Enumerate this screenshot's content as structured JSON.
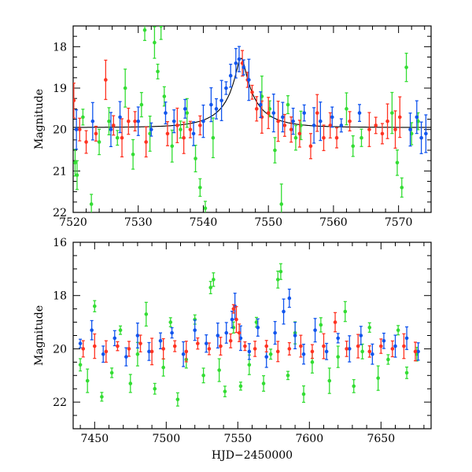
{
  "chart_data": [
    {
      "id": "top",
      "type": "scatter",
      "ylabel": "Magnitude",
      "xlabel": "",
      "xlim": [
        7520,
        7575
      ],
      "ylim": [
        22,
        17.5
      ],
      "xticks": [
        7520,
        7530,
        7540,
        7550,
        7560,
        7570
      ],
      "yticks": [
        18,
        19,
        20,
        21,
        22
      ],
      "model": {
        "baseline": 19.95,
        "t0": 7545.8,
        "peak": 18.28,
        "u0": 0.12,
        "tE": 6.0
      },
      "series": [
        {
          "name": "green",
          "color": "#33dd33",
          "points": [
            [
              7520.3,
              20.8
            ],
            [
              7520.6,
              21.1
            ],
            [
              7521.5,
              19.7
            ],
            [
              7522.8,
              21.8
            ],
            [
              7524.0,
              20.3
            ],
            [
              7525.5,
              19.8
            ],
            [
              7526.8,
              20.2
            ],
            [
              7528.0,
              19.0
            ],
            [
              7529.2,
              20.6
            ],
            [
              7530.5,
              19.4
            ],
            [
              7531.0,
              17.6
            ],
            [
              7531.8,
              20.1
            ],
            [
              7532.5,
              17.9
            ],
            [
              7533.0,
              18.6
            ],
            [
              7533.5,
              17.5
            ],
            [
              7534.0,
              19.2
            ],
            [
              7535.2,
              20.4
            ],
            [
              7536.5,
              20.0
            ],
            [
              7537.5,
              19.6
            ],
            [
              7538.8,
              20.7
            ],
            [
              7539.5,
              21.4
            ],
            [
              7540.3,
              21.9
            ],
            [
              7541.5,
              20.2
            ],
            [
              7549.0,
              19.2
            ],
            [
              7550.2,
              19.5
            ],
            [
              7551.0,
              20.5
            ],
            [
              7552.0,
              21.8
            ],
            [
              7553.0,
              19.4
            ],
            [
              7554.2,
              20.2
            ],
            [
              7555.0,
              19.9
            ],
            [
              7562.0,
              19.5
            ],
            [
              7563.0,
              20.4
            ],
            [
              7564.3,
              20.2
            ],
            [
              7569.0,
              19.6
            ],
            [
              7569.8,
              20.8
            ],
            [
              7570.5,
              21.4
            ],
            [
              7571.2,
              18.5
            ],
            [
              7572.0,
              20.1
            ],
            [
              7573.0,
              19.8
            ]
          ]
        },
        {
          "name": "red",
          "color": "#ff3322",
          "points": [
            [
              7520.1,
              19.3
            ],
            [
              7521.0,
              20.0
            ],
            [
              7522.0,
              20.3
            ],
            [
              7523.5,
              20.1
            ],
            [
              7525.0,
              18.8
            ],
            [
              7526.2,
              19.9
            ],
            [
              7527.5,
              20.2
            ],
            [
              7528.5,
              19.8
            ],
            [
              7529.5,
              19.8
            ],
            [
              7531.2,
              20.3
            ],
            [
              7534.5,
              20.1
            ],
            [
              7536.0,
              19.9
            ],
            [
              7537.0,
              20.2
            ],
            [
              7538.0,
              20.0
            ],
            [
              7539.5,
              19.9
            ],
            [
              7546.0,
              18.4
            ],
            [
              7546.8,
              18.8
            ],
            [
              7547.5,
              19.1
            ],
            [
              7548.2,
              19.5
            ],
            [
              7549.0,
              19.7
            ],
            [
              7550.0,
              19.6
            ],
            [
              7551.5,
              19.8
            ],
            [
              7552.5,
              19.9
            ],
            [
              7553.5,
              20.0
            ],
            [
              7554.8,
              20.1
            ],
            [
              7556.5,
              20.4
            ],
            [
              7557.5,
              19.6
            ],
            [
              7558.5,
              20.2
            ],
            [
              7559.5,
              19.9
            ],
            [
              7560.5,
              20.2
            ],
            [
              7562.5,
              19.8
            ],
            [
              7565.5,
              20.0
            ],
            [
              7566.5,
              19.9
            ],
            [
              7567.5,
              20.1
            ],
            [
              7568.3,
              19.8
            ],
            [
              7569.5,
              20.0
            ],
            [
              7570.2,
              19.7
            ]
          ]
        },
        {
          "name": "blue",
          "color": "#1155ee",
          "points": [
            [
              7520.5,
              20.0
            ],
            [
              7523.0,
              19.8
            ],
            [
              7525.8,
              20.0
            ],
            [
              7527.2,
              19.7
            ],
            [
              7530.0,
              19.8
            ],
            [
              7532.0,
              20.0
            ],
            [
              7534.2,
              19.6
            ],
            [
              7535.5,
              19.8
            ],
            [
              7537.2,
              19.5
            ],
            [
              7538.5,
              20.1
            ],
            [
              7540.0,
              19.8
            ],
            [
              7541.2,
              19.4
            ],
            [
              7542.0,
              19.5
            ],
            [
              7542.8,
              19.3
            ],
            [
              7543.5,
              19.0
            ],
            [
              7544.2,
              18.7
            ],
            [
              7545.0,
              18.4
            ],
            [
              7545.5,
              18.3
            ],
            [
              7546.2,
              18.5
            ],
            [
              7547.0,
              18.8
            ],
            [
              7548.8,
              19.4
            ],
            [
              7550.8,
              19.6
            ],
            [
              7552.2,
              19.7
            ],
            [
              7553.8,
              19.8
            ],
            [
              7555.5,
              19.6
            ],
            [
              7557.0,
              19.9
            ],
            [
              7558.0,
              19.8
            ],
            [
              7559.8,
              19.7
            ],
            [
              7561.2,
              19.9
            ],
            [
              7564.0,
              19.6
            ],
            [
              7571.8,
              20.0
            ],
            [
              7572.8,
              19.7
            ],
            [
              7573.5,
              20.2
            ],
            [
              7574.2,
              20.1
            ]
          ]
        }
      ]
    },
    {
      "id": "bottom",
      "type": "scatter",
      "ylabel": "Magnitude",
      "xlabel": "HJD−2450000",
      "xlim": [
        7435,
        7685
      ],
      "ylim": [
        23,
        16
      ],
      "xticks": [
        7450,
        7500,
        7550,
        7600,
        7650
      ],
      "yticks": [
        16,
        18,
        20,
        22
      ],
      "series": [
        {
          "name": "green",
          "color": "#33dd33",
          "points": [
            [
              7440,
              20.6
            ],
            [
              7445,
              21.2
            ],
            [
              7450,
              18.4
            ],
            [
              7455,
              21.8
            ],
            [
              7462,
              20.9
            ],
            [
              7468,
              19.3
            ],
            [
              7475,
              21.3
            ],
            [
              7480,
              20.2
            ],
            [
              7486,
              18.7
            ],
            [
              7492,
              21.5
            ],
            [
              7498,
              20.7
            ],
            [
              7503,
              19.0
            ],
            [
              7508,
              21.9
            ],
            [
              7514,
              20.4
            ],
            [
              7520,
              18.9
            ],
            [
              7526,
              21.0
            ],
            [
              7531,
              17.7
            ],
            [
              7533,
              17.4
            ],
            [
              7537,
              20.8
            ],
            [
              7541,
              21.6
            ],
            [
              7547,
              19.2
            ],
            [
              7552,
              21.4
            ],
            [
              7558,
              20.6
            ],
            [
              7563,
              19.0
            ],
            [
              7568,
              21.3
            ],
            [
              7573,
              20.2
            ],
            [
              7578,
              17.4
            ],
            [
              7580,
              17.1
            ],
            [
              7585,
              21.0
            ],
            [
              7590,
              19.4
            ],
            [
              7596,
              21.7
            ],
            [
              7602,
              20.5
            ],
            [
              7608,
              19.1
            ],
            [
              7614,
              21.2
            ],
            [
              7620,
              20.3
            ],
            [
              7625,
              18.6
            ],
            [
              7631,
              21.4
            ],
            [
              7637,
              20.1
            ],
            [
              7642,
              19.2
            ],
            [
              7648,
              21.1
            ],
            [
              7655,
              20.4
            ],
            [
              7662,
              19.3
            ],
            [
              7668,
              20.9
            ],
            [
              7675,
              20.2
            ]
          ]
        },
        {
          "name": "blue",
          "color": "#1155ee",
          "points": [
            [
              7440,
              19.8
            ],
            [
              7448,
              19.3
            ],
            [
              7456,
              20.2
            ],
            [
              7464,
              19.6
            ],
            [
              7472,
              20.3
            ],
            [
              7480,
              19.5
            ],
            [
              7488,
              20.1
            ],
            [
              7496,
              19.7
            ],
            [
              7504,
              19.4
            ],
            [
              7512,
              20.2
            ],
            [
              7520,
              19.3
            ],
            [
              7528,
              19.8
            ],
            [
              7536,
              19.5
            ],
            [
              7542,
              19.4
            ],
            [
              7546,
              18.9
            ],
            [
              7548,
              18.4
            ],
            [
              7552,
              19.6
            ],
            [
              7558,
              20.1
            ],
            [
              7564,
              19.2
            ],
            [
              7570,
              20.3
            ],
            [
              7576,
              19.4
            ],
            [
              7582,
              18.6
            ],
            [
              7586,
              18.1
            ],
            [
              7590,
              19.5
            ],
            [
              7596,
              20.2
            ],
            [
              7604,
              19.3
            ],
            [
              7612,
              20.1
            ],
            [
              7620,
              19.6
            ],
            [
              7628,
              20.0
            ],
            [
              7636,
              19.5
            ],
            [
              7644,
              20.2
            ],
            [
              7652,
              19.7
            ],
            [
              7660,
              19.9
            ],
            [
              7668,
              19.6
            ],
            [
              7676,
              20.1
            ]
          ]
        },
        {
          "name": "red",
          "color": "#ff3322",
          "points": [
            [
              7442,
              20.0
            ],
            [
              7450,
              19.9
            ],
            [
              7458,
              20.1
            ],
            [
              7466,
              19.9
            ],
            [
              7474,
              20.0
            ],
            [
              7482,
              19.8
            ],
            [
              7490,
              20.1
            ],
            [
              7498,
              20.0
            ],
            [
              7506,
              19.9
            ],
            [
              7514,
              20.1
            ],
            [
              7522,
              19.8
            ],
            [
              7530,
              20.0
            ],
            [
              7538,
              19.9
            ],
            [
              7545,
              19.7
            ],
            [
              7547,
              18.5
            ],
            [
              7549,
              18.9
            ],
            [
              7551,
              19.4
            ],
            [
              7555,
              19.9
            ],
            [
              7562,
              20.0
            ],
            [
              7570,
              19.9
            ],
            [
              7578,
              20.1
            ],
            [
              7586,
              20.0
            ],
            [
              7594,
              19.9
            ],
            [
              7602,
              20.1
            ],
            [
              7610,
              19.9
            ],
            [
              7618,
              19.0
            ],
            [
              7626,
              20.0
            ],
            [
              7634,
              19.9
            ],
            [
              7642,
              20.1
            ],
            [
              7650,
              19.9
            ],
            [
              7658,
              20.0
            ],
            [
              7666,
              19.9
            ],
            [
              7674,
              20.1
            ]
          ]
        }
      ]
    }
  ]
}
